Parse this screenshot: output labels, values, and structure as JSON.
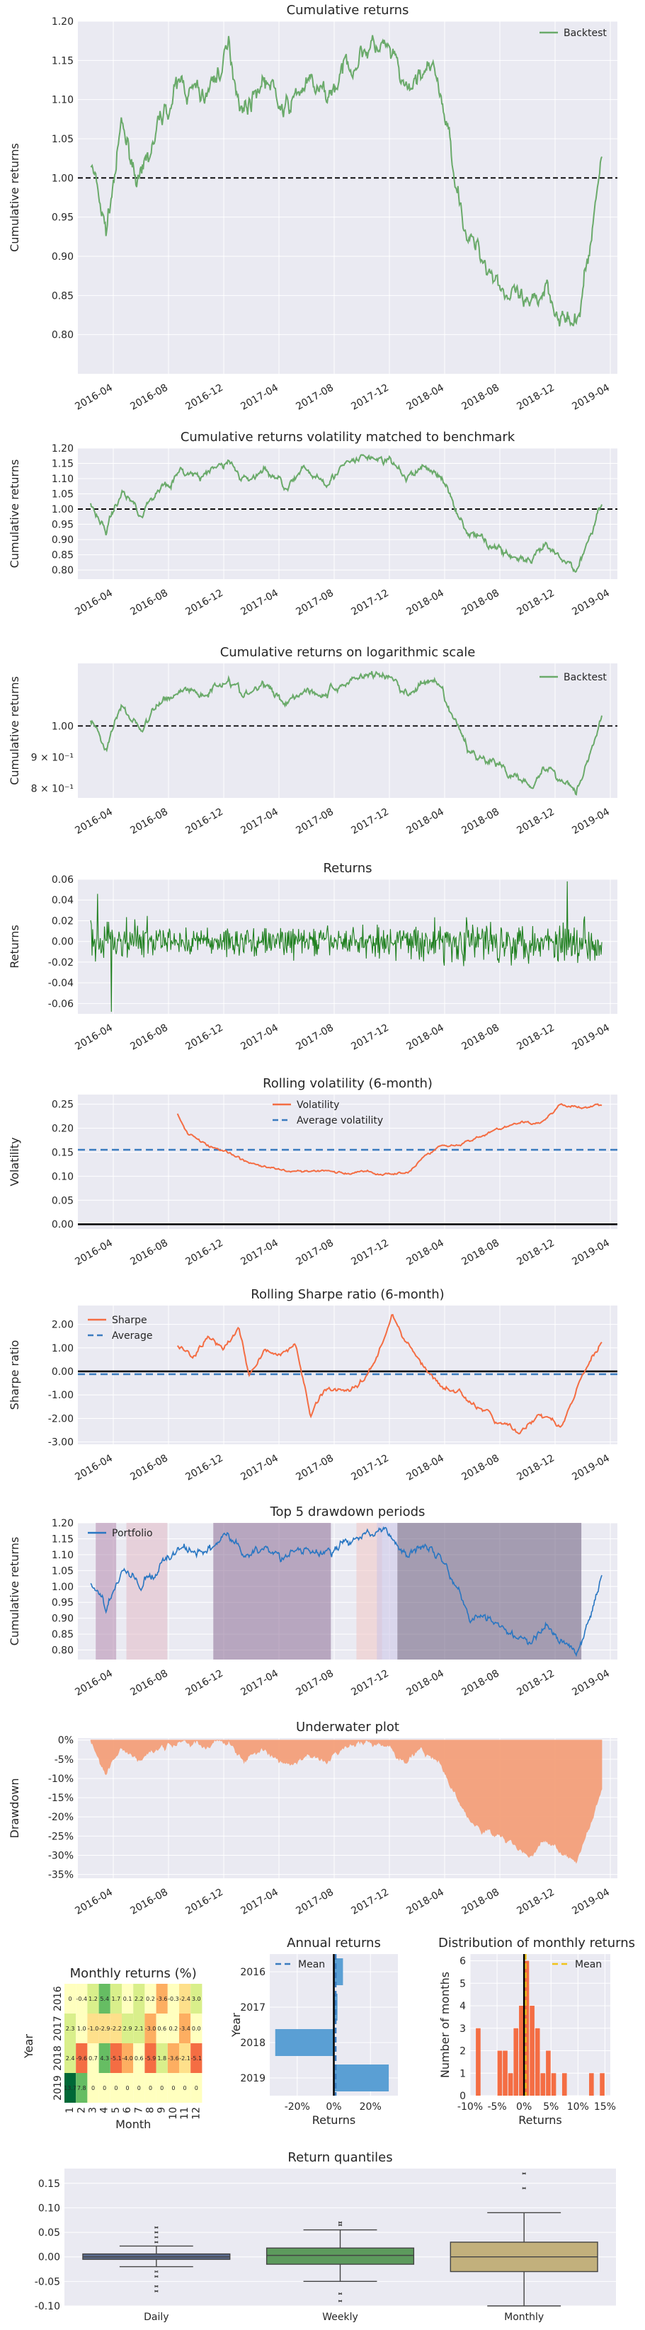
{
  "colors": {
    "plot_bg": "#eaeaf2",
    "grid": "#ffffff",
    "backtest": "#6aaa6a",
    "returns": "#1e7f1e",
    "volatility": "#f46d43",
    "mean_line": "#3a7bbf",
    "portfolio": "#2876c2",
    "underwater": "#f4a07a",
    "mean_gold": "#f0c419"
  },
  "date_ticks": [
    "2016-04",
    "2016-08",
    "2016-12",
    "2017-04",
    "2017-08",
    "2017-12",
    "2018-04",
    "2018-08",
    "2018-12",
    "2019-04"
  ],
  "chart_data": [
    {
      "id": "cum",
      "type": "line",
      "title": "Cumulative returns",
      "ylabel": "Cumulative returns",
      "ylim": [
        0.75,
        1.2
      ],
      "yticks": [
        "0.80",
        "0.85",
        "0.90",
        "0.95",
        "1.00",
        "1.05",
        "1.10",
        "1.15",
        "1.20"
      ],
      "legend": [
        "Backtest"
      ],
      "reference_line": 1.0,
      "series": [
        {
          "name": "Backtest",
          "x": [
            0,
            0.03,
            0.06,
            0.1,
            0.14,
            0.18,
            0.22,
            0.27,
            0.3,
            0.34,
            0.38,
            0.42,
            0.46,
            0.5,
            0.54,
            0.58,
            0.62,
            0.65,
            0.68,
            0.71,
            0.74,
            0.78,
            0.82,
            0.86,
            0.89,
            0.92,
            0.95,
            0.98,
            1.0
          ],
          "values": [
            1.02,
            0.93,
            1.06,
            0.99,
            1.08,
            1.12,
            1.1,
            1.16,
            1.09,
            1.13,
            1.08,
            1.12,
            1.1,
            1.14,
            1.17,
            1.16,
            1.1,
            1.14,
            1.12,
            1.02,
            0.92,
            0.89,
            0.85,
            0.82,
            0.87,
            0.83,
            0.8,
            0.93,
            1.03
          ]
        }
      ]
    },
    {
      "id": "volmatch",
      "type": "line",
      "title": "Cumulative returns volatility matched to benchmark",
      "ylabel": "Cumulative returns",
      "ylim": [
        0.77,
        1.2
      ],
      "yticks": [
        "0.80",
        "0.85",
        "0.90",
        "0.95",
        "1.00",
        "1.05",
        "1.10",
        "1.15",
        "1.20"
      ],
      "reference_line": 1.0,
      "series": [
        {
          "name": "Backtest",
          "x": [
            0,
            0.03,
            0.06,
            0.1,
            0.14,
            0.18,
            0.22,
            0.27,
            0.3,
            0.34,
            0.38,
            0.42,
            0.46,
            0.5,
            0.54,
            0.58,
            0.62,
            0.65,
            0.68,
            0.71,
            0.74,
            0.78,
            0.82,
            0.86,
            0.89,
            0.92,
            0.95,
            0.98,
            1.0
          ],
          "values": [
            1.02,
            0.93,
            1.06,
            0.99,
            1.08,
            1.12,
            1.1,
            1.16,
            1.09,
            1.13,
            1.08,
            1.12,
            1.1,
            1.14,
            1.17,
            1.16,
            1.1,
            1.14,
            1.12,
            1.02,
            0.92,
            0.89,
            0.85,
            0.82,
            0.87,
            0.83,
            0.8,
            0.93,
            1.03
          ]
        }
      ]
    },
    {
      "id": "log",
      "type": "line",
      "title": "Cumulative returns on logarithmic scale",
      "ylabel": "Cumulative returns",
      "ylim": [
        0.77,
        1.2
      ],
      "yticks": [
        "1.00"
      ],
      "yticks_log": [
        "9 × 10⁻¹",
        "8 × 10⁻¹"
      ],
      "legend": [
        "Backtest"
      ],
      "reference_line": 1.0,
      "series": [
        {
          "name": "Backtest",
          "x": [
            0,
            0.03,
            0.06,
            0.1,
            0.14,
            0.18,
            0.22,
            0.27,
            0.3,
            0.34,
            0.38,
            0.42,
            0.46,
            0.5,
            0.54,
            0.58,
            0.62,
            0.65,
            0.68,
            0.71,
            0.74,
            0.78,
            0.82,
            0.86,
            0.89,
            0.92,
            0.95,
            0.98,
            1.0
          ],
          "values": [
            1.02,
            0.93,
            1.06,
            0.99,
            1.08,
            1.12,
            1.1,
            1.16,
            1.09,
            1.13,
            1.08,
            1.12,
            1.1,
            1.14,
            1.17,
            1.16,
            1.1,
            1.14,
            1.12,
            1.02,
            0.92,
            0.89,
            0.85,
            0.82,
            0.87,
            0.83,
            0.8,
            0.93,
            1.03
          ]
        }
      ]
    },
    {
      "id": "returns",
      "type": "line",
      "title": "Returns",
      "ylabel": "Returns",
      "ylim": [
        -0.07,
        0.06
      ],
      "yticks": [
        "-0.06",
        "-0.04",
        "-0.02",
        "0.00",
        "0.02",
        "0.04",
        "0.06"
      ]
    },
    {
      "id": "rollvol",
      "type": "line",
      "title": "Rolling volatility (6-month)",
      "ylabel": "Volatility",
      "ylim": [
        -0.01,
        0.27
      ],
      "yticks": [
        "0.00",
        "0.05",
        "0.10",
        "0.15",
        "0.20",
        "0.25"
      ],
      "legend": [
        "Volatility",
        "Average volatility"
      ],
      "average": 0.155,
      "series": [
        {
          "name": "Volatility",
          "x": [
            0.17,
            0.19,
            0.22,
            0.26,
            0.3,
            0.34,
            0.38,
            0.42,
            0.46,
            0.5,
            0.54,
            0.58,
            0.62,
            0.65,
            0.68,
            0.72,
            0.76,
            0.8,
            0.84,
            0.88,
            0.92,
            0.96,
            1.0
          ],
          "values": [
            0.23,
            0.19,
            0.17,
            0.15,
            0.13,
            0.12,
            0.11,
            0.11,
            0.11,
            0.105,
            0.11,
            0.105,
            0.11,
            0.14,
            0.16,
            0.17,
            0.18,
            0.2,
            0.21,
            0.21,
            0.25,
            0.24,
            0.25
          ]
        }
      ]
    },
    {
      "id": "sharpe",
      "type": "line",
      "title": "Rolling Sharpe ratio (6-month)",
      "ylabel": "Sharpe ratio",
      "ylim": [
        -3.1,
        2.8
      ],
      "yticks": [
        "-3.00",
        "-2.00",
        "-1.00",
        "0.00",
        "1.00",
        "2.00"
      ],
      "legend": [
        "Sharpe",
        "Average"
      ],
      "average": -0.12,
      "series": [
        {
          "name": "Sharpe",
          "x": [
            0.17,
            0.2,
            0.23,
            0.26,
            0.29,
            0.31,
            0.34,
            0.37,
            0.4,
            0.43,
            0.46,
            0.5,
            0.53,
            0.56,
            0.59,
            0.62,
            0.65,
            0.68,
            0.72,
            0.76,
            0.8,
            0.84,
            0.88,
            0.92,
            0.96,
            1.0
          ],
          "values": [
            1.1,
            0.6,
            1.5,
            0.9,
            1.8,
            -0.1,
            1.0,
            0.6,
            1.1,
            -1.8,
            -0.7,
            -0.8,
            -0.3,
            0.5,
            2.4,
            1.2,
            0.2,
            -0.6,
            -0.9,
            -1.6,
            -2.2,
            -2.6,
            -1.8,
            -2.4,
            -0.4,
            1.3
          ]
        }
      ]
    },
    {
      "id": "drawdown",
      "type": "line",
      "title": "Top 5 drawdown periods",
      "ylabel": "Cumulative returns",
      "ylim": [
        0.77,
        1.2
      ],
      "yticks": [
        "0.80",
        "0.85",
        "0.90",
        "0.95",
        "1.00",
        "1.05",
        "1.10",
        "1.15",
        "1.20"
      ],
      "legend": [
        "Portfolio"
      ],
      "periods": [
        [
          0.01,
          0.05
        ],
        [
          0.07,
          0.15
        ],
        [
          0.24,
          0.47
        ],
        [
          0.52,
          0.57
        ],
        [
          0.6,
          0.96
        ],
        [
          0.56,
          0.6
        ]
      ],
      "series": [
        {
          "name": "Portfolio",
          "x": [
            0,
            0.03,
            0.06,
            0.1,
            0.14,
            0.18,
            0.22,
            0.27,
            0.3,
            0.34,
            0.38,
            0.42,
            0.46,
            0.5,
            0.54,
            0.58,
            0.62,
            0.65,
            0.68,
            0.71,
            0.74,
            0.78,
            0.82,
            0.86,
            0.89,
            0.92,
            0.95,
            0.98,
            1.0
          ],
          "values": [
            1.02,
            0.93,
            1.06,
            0.99,
            1.08,
            1.12,
            1.1,
            1.16,
            1.09,
            1.13,
            1.08,
            1.12,
            1.1,
            1.14,
            1.17,
            1.16,
            1.1,
            1.14,
            1.12,
            1.02,
            0.92,
            0.89,
            0.85,
            0.82,
            0.87,
            0.83,
            0.8,
            0.93,
            1.03
          ]
        }
      ]
    },
    {
      "id": "underwater",
      "type": "area",
      "title": "Underwater plot",
      "ylabel": "Drawdown",
      "ylim": [
        -0.36,
        0.005
      ],
      "yticks": [
        "0%",
        "-5%",
        "-10%",
        "-15%",
        "-20%",
        "-25%",
        "-30%",
        "-35%"
      ],
      "series": [
        {
          "name": "Drawdown",
          "x": [
            0,
            0.03,
            0.06,
            0.1,
            0.14,
            0.18,
            0.22,
            0.27,
            0.3,
            0.34,
            0.38,
            0.42,
            0.46,
            0.5,
            0.54,
            0.58,
            0.62,
            0.65,
            0.68,
            0.71,
            0.74,
            0.78,
            0.82,
            0.86,
            0.89,
            0.92,
            0.95,
            0.98,
            1.0
          ],
          "values": [
            0,
            -0.08,
            -0.02,
            -0.05,
            -0.02,
            0,
            -0.02,
            0,
            -0.05,
            -0.03,
            -0.07,
            -0.04,
            -0.06,
            -0.02,
            0,
            -0.01,
            -0.06,
            -0.03,
            -0.05,
            -0.13,
            -0.21,
            -0.24,
            -0.27,
            -0.3,
            -0.26,
            -0.29,
            -0.33,
            -0.2,
            -0.12
          ]
        }
      ]
    },
    {
      "id": "heatmap",
      "type": "heatmap",
      "title": "Monthly returns (%)",
      "xlabel": "Month",
      "ylabel": "Year",
      "years": [
        "2016",
        "2017",
        "2018",
        "2019"
      ],
      "months": [
        "1",
        "2",
        "3",
        "4",
        "5",
        "6",
        "7",
        "8",
        "9",
        "10",
        "11",
        "12"
      ],
      "values": [
        [
          0,
          -0.4,
          1.2,
          5.4,
          1.7,
          0.1,
          2.2,
          0.2,
          -3.6,
          -0.3,
          -2.4,
          3.0
        ],
        [
          2.3,
          1.0,
          -1.0,
          -2.9,
          -2.2,
          2.9,
          2.1,
          -3.0,
          0.6,
          0.2,
          -3.4,
          0.0
        ],
        [
          2.4,
          -9.6,
          0.7,
          4.3,
          -5.1,
          -4.0,
          0.6,
          -5.9,
          1.8,
          -3.6,
          -2.1,
          -5.1
        ],
        [
          13.7,
          7.8,
          0,
          0,
          0,
          0,
          0,
          0,
          0,
          0,
          0,
          0
        ]
      ],
      "labels": [
        [
          "0",
          "-0.4",
          "1.2",
          "5.4",
          "1.7",
          "0.1",
          "2.2",
          "0.2",
          "-3.6",
          "-0.3",
          "-2.4",
          "3.0"
        ],
        [
          "2.3",
          "1.0",
          "-1.0",
          "-2.9",
          "-2.2",
          "2.9",
          "2.1",
          "-3.0",
          "0.6",
          "0.2",
          "-3.4",
          "0.0"
        ],
        [
          "2.4",
          "-9.6",
          "0.7",
          "4.3",
          "-5.1",
          "-4.0",
          "0.6",
          "-5.9",
          "1.8",
          "-3.6",
          "-2.1",
          "-5.1"
        ],
        [
          "13.7",
          "7.8",
          "0",
          "0",
          "0",
          "0",
          "0",
          "0",
          "0",
          "0",
          "0",
          "0"
        ]
      ]
    },
    {
      "id": "annual",
      "type": "bar",
      "title": "Annual returns",
      "xlabel": "Returns",
      "ylabel": "Year",
      "categories": [
        "2016",
        "2017",
        "2018",
        "2019"
      ],
      "values": [
        0.05,
        0.02,
        -0.32,
        0.3
      ],
      "mean": 0.01,
      "legend": [
        "Mean"
      ],
      "xticks": [
        "-20%",
        "0%",
        "20%"
      ],
      "xlim": [
        -0.35,
        0.35
      ]
    },
    {
      "id": "dist",
      "type": "bar",
      "title": "Distribution of monthly returns",
      "xlabel": "Returns",
      "ylabel": "Number of months",
      "legend": [
        "Mean"
      ],
      "bins": [
        -0.1,
        -0.09,
        -0.08,
        -0.07,
        -0.06,
        -0.05,
        -0.04,
        -0.03,
        -0.02,
        -0.01,
        0,
        0.01,
        0.02,
        0.03,
        0.04,
        0.05,
        0.06,
        0.07,
        0.08,
        0.09,
        0.1,
        0.11,
        0.12,
        0.13,
        0.14,
        0.15
      ],
      "counts": [
        0,
        3,
        0,
        0,
        0,
        2,
        2,
        1,
        3,
        4,
        6,
        4,
        3,
        1,
        2,
        1,
        0,
        1,
        0,
        0,
        0,
        0,
        1,
        0,
        1
      ],
      "mean": 0.003,
      "xticks": [
        "-10%",
        "-5%",
        "0%",
        "5%",
        "10%",
        "15%"
      ],
      "yticks": [
        "0",
        "1",
        "2",
        "3",
        "4",
        "5",
        "6"
      ],
      "xlim": [
        -0.1,
        0.16
      ],
      "ylim": [
        0,
        6.3
      ]
    },
    {
      "id": "quantiles",
      "type": "box",
      "title": "Return quantiles",
      "categories": [
        "Daily",
        "Weekly",
        "Monthly"
      ],
      "ylim": [
        -0.1,
        0.18
      ],
      "yticks": [
        "-0.10",
        "-0.05",
        "0.00",
        "0.05",
        "0.10",
        "0.15"
      ],
      "boxes": [
        {
          "min": -0.02,
          "q1": -0.005,
          "median": 0.0,
          "q3": 0.006,
          "max": 0.022,
          "outliers": [
            0.03,
            0.04,
            0.05,
            0.06,
            -0.03,
            -0.04,
            -0.06,
            -0.07
          ]
        },
        {
          "min": -0.05,
          "q1": -0.015,
          "median": 0.003,
          "q3": 0.018,
          "max": 0.055,
          "outliers": [
            0.065,
            0.07,
            -0.075,
            -0.09
          ]
        },
        {
          "min": -0.1,
          "q1": -0.03,
          "median": 0.0,
          "q3": 0.03,
          "max": 0.09,
          "outliers": [
            0.14,
            0.17
          ]
        }
      ]
    }
  ]
}
